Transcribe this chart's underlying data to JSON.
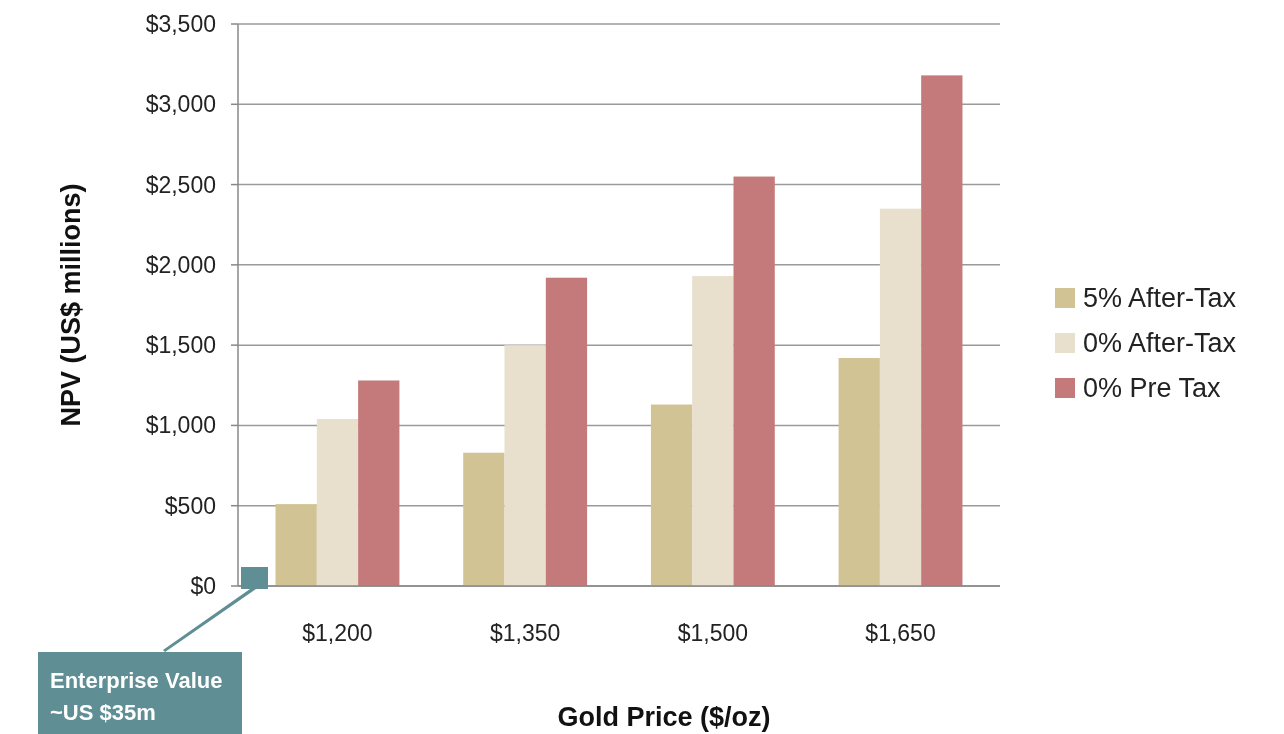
{
  "chart_data": {
    "type": "bar",
    "xlabel": "Gold Price ($/oz)",
    "ylabel": "NPV (US$ millions)",
    "categories": [
      "$1,200",
      "$1,350",
      "$1,500",
      "$1,650"
    ],
    "series": [
      {
        "name": "5% After-Tax",
        "color": "#d1c394",
        "values": [
          510,
          830,
          1130,
          1420
        ]
      },
      {
        "name": "0% After-Tax",
        "color": "#e8dfcc",
        "values": [
          1040,
          1500,
          1930,
          2350
        ]
      },
      {
        "name": "0% Pre Tax",
        "color": "#c47a7a",
        "values": [
          1280,
          1920,
          2550,
          3180
        ]
      }
    ],
    "ylim": [
      0,
      3500
    ],
    "yticks": [
      {
        "value": 0,
        "label": "$0"
      },
      {
        "value": 500,
        "label": "$500"
      },
      {
        "value": 1000,
        "label": "$1,000"
      },
      {
        "value": 1500,
        "label": "$1,500"
      },
      {
        "value": 2000,
        "label": "$2,000"
      },
      {
        "value": 2500,
        "label": "$2,500"
      },
      {
        "value": 3000,
        "label": "$3,000"
      },
      {
        "value": 3500,
        "label": "$3,500"
      }
    ],
    "grid": "y",
    "legend": "right",
    "annotations": [
      "Enterprise Value\n~US $35m"
    ]
  }
}
